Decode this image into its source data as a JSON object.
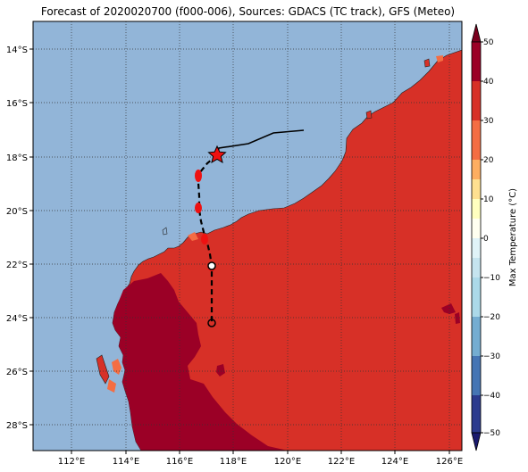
{
  "title": "Forecast of 2020020700 (f000-006), Sources: GDACS (TC track), GFS (Meteo)",
  "map": {
    "lon_ticks": [
      "112°E",
      "114°E",
      "116°E",
      "118°E",
      "120°E",
      "122°E",
      "124°E",
      "126°E"
    ],
    "lat_ticks": [
      "14°S",
      "16°S",
      "18°S",
      "20°S",
      "22°S",
      "24°S",
      "26°S",
      "28°S"
    ],
    "gridlines": true,
    "ocean_color": "#92b5d8"
  },
  "colorbar": {
    "label": "Max Temperature (°C)",
    "ticks": [
      "50",
      "40",
      "30",
      "20",
      "10",
      "0",
      "−10",
      "−20",
      "−30",
      "−40",
      "−50"
    ],
    "colors_top_to_bottom": [
      "#9b0026",
      "#d73027",
      "#f46d43",
      "#fdae61",
      "#fee090",
      "#ffffbf",
      "#e0f3f8",
      "#abd9e9",
      "#74add1",
      "#4575b4",
      "#2b3a8e",
      "#1a1a6e"
    ],
    "extend": "both"
  },
  "track": {
    "observed_style": "solid black line",
    "forecast_style": "dashed black line",
    "current_position_marker": "red star",
    "forecast_marker": "open circle"
  },
  "icons": {
    "current": "red-star-icon",
    "forecast_point": "open-circle-icon"
  }
}
